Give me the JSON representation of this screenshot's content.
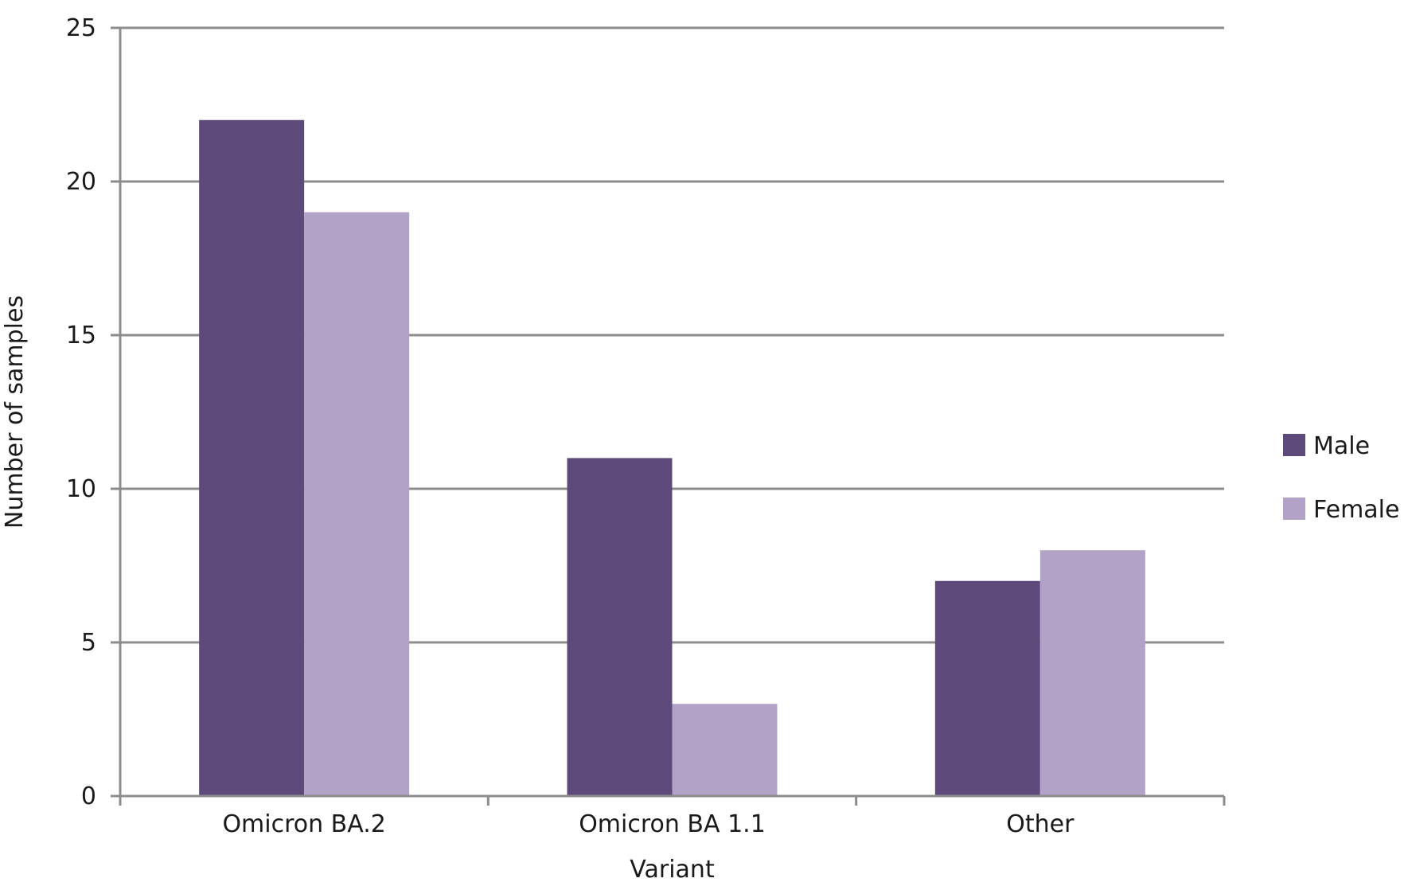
{
  "chart_data": {
    "type": "bar",
    "title": "",
    "xlabel": "Variant",
    "ylabel": "Number of samples",
    "categories": [
      "Omicron BA.2",
      "Omicron BA 1.1",
      "Other"
    ],
    "series": [
      {
        "name": "Male",
        "values": [
          22,
          11,
          7
        ],
        "color": "#5e4a7a"
      },
      {
        "name": "Female",
        "values": [
          19,
          3,
          8
        ],
        "color": "#b2a2c8"
      }
    ],
    "ylim": [
      0,
      25
    ],
    "yticks": [
      "0",
      "5",
      "10",
      "15",
      "20",
      "25"
    ],
    "grid": true,
    "legend_position": "right"
  }
}
